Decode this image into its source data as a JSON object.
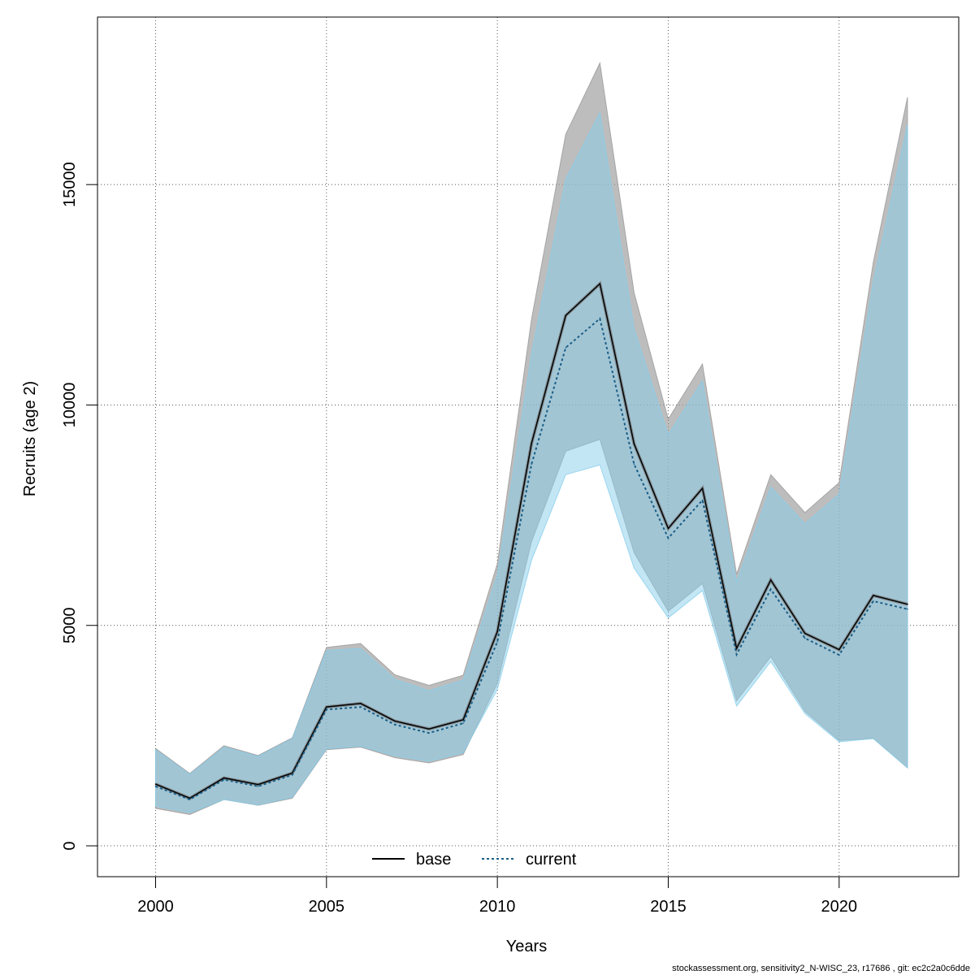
{
  "chart_data": {
    "type": "area",
    "title": "",
    "xlabel": "Years",
    "ylabel": "Recruits (age 2)",
    "xlim": [
      1998.3,
      2023.5
    ],
    "ylim": [
      -700,
      18800
    ],
    "x_ticks": [
      2000,
      2005,
      2010,
      2015,
      2020
    ],
    "y_ticks": [
      0,
      5000,
      10000,
      15000
    ],
    "grid": true,
    "legend_position": "bottom-center",
    "x": [
      2000,
      2001,
      2002,
      2003,
      2004,
      2005,
      2006,
      2007,
      2008,
      2009,
      2010,
      2011,
      2012,
      2013,
      2014,
      2015,
      2016,
      2017,
      2018,
      2019,
      2020,
      2021,
      2022
    ],
    "series": [
      {
        "name": "base",
        "line_style": "solid",
        "line_color": "#000000",
        "band_color": "#999999",
        "values": [
          1400,
          1080,
          1540,
          1390,
          1650,
          3150,
          3230,
          2830,
          2650,
          2860,
          4860,
          9130,
          12030,
          12750,
          9120,
          7200,
          8110,
          4480,
          6030,
          4820,
          4450,
          5680,
          5480
        ],
        "lower": [
          850,
          710,
          1050,
          920,
          1080,
          2180,
          2240,
          2000,
          1880,
          2070,
          3680,
          6900,
          8950,
          9220,
          6650,
          5320,
          5950,
          3290,
          4290,
          3050,
          2390,
          2440,
          1770
        ],
        "upper": [
          2210,
          1640,
          2270,
          2050,
          2450,
          4500,
          4590,
          3880,
          3640,
          3870,
          6400,
          11950,
          16140,
          17760,
          12550,
          9680,
          10930,
          6160,
          8420,
          7560,
          8240,
          13240,
          16980
        ]
      },
      {
        "name": "current",
        "line_style": "dotted",
        "line_color": "#1a5e86",
        "band_color": "#87ceeb",
        "values": [
          1350,
          1050,
          1500,
          1350,
          1610,
          3090,
          3150,
          2750,
          2560,
          2780,
          4630,
          8660,
          11300,
          11960,
          8660,
          6980,
          7840,
          4340,
          5820,
          4710,
          4330,
          5550,
          5370
        ],
        "lower": [
          900,
          750,
          1050,
          930,
          1100,
          2200,
          2260,
          2040,
          1920,
          2110,
          3550,
          6480,
          8420,
          8640,
          6300,
          5170,
          5790,
          3170,
          4180,
          3000,
          2360,
          2430,
          1770
        ],
        "upper": [
          2180,
          1620,
          2240,
          2030,
          2430,
          4430,
          4480,
          3780,
          3520,
          3760,
          6150,
          11160,
          15130,
          16630,
          11740,
          9330,
          10550,
          5990,
          8140,
          7310,
          7980,
          12800,
          16360
        ]
      }
    ]
  },
  "footer": "stockassessment.org, sensitivity2_N-WISC_23, r17686 , git: ec2c2a0c6dde"
}
